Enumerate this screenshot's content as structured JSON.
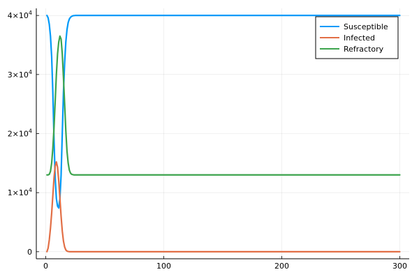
{
  "chart_data": {
    "type": "line",
    "title": "",
    "xlabel": "",
    "ylabel": "",
    "xlim": [
      -8,
      308
    ],
    "ylim": [
      -1200,
      41200
    ],
    "grid": true,
    "legend_position": "top-right",
    "x_ticks": [
      {
        "value": 0,
        "label": "0"
      },
      {
        "value": 100,
        "label": "100"
      },
      {
        "value": 200,
        "label": "200"
      },
      {
        "value": 300,
        "label": "300"
      }
    ],
    "y_ticks": [
      {
        "value": 0,
        "label": "0",
        "mantissa": "",
        "exponent": ""
      },
      {
        "value": 10000,
        "label": "",
        "mantissa": "1×10",
        "exponent": "4"
      },
      {
        "value": 20000,
        "label": "",
        "mantissa": "2×10",
        "exponent": "4"
      },
      {
        "value": 30000,
        "label": "",
        "mantissa": "3×10",
        "exponent": "4"
      },
      {
        "value": 40000,
        "label": "",
        "mantissa": "4×10",
        "exponent": "4"
      }
    ],
    "series": [
      {
        "name": "Susceptible",
        "color": "#009af9",
        "points": [
          [
            1,
            40000
          ],
          [
            2,
            39600
          ],
          [
            3,
            38500
          ],
          [
            4,
            36500
          ],
          [
            5,
            33000
          ],
          [
            6,
            27000
          ],
          [
            7,
            19000
          ],
          [
            8,
            12500
          ],
          [
            9,
            9000
          ],
          [
            10,
            7700
          ],
          [
            11,
            7400
          ],
          [
            12,
            9000
          ],
          [
            13,
            13000
          ],
          [
            14,
            20000
          ],
          [
            15,
            27000
          ],
          [
            16,
            32000
          ],
          [
            17,
            35500
          ],
          [
            18,
            37600
          ],
          [
            19,
            38800
          ],
          [
            20,
            39400
          ],
          [
            21,
            39700
          ],
          [
            22,
            39850
          ],
          [
            23,
            39950
          ],
          [
            25,
            40000
          ],
          [
            50,
            40000
          ],
          [
            100,
            40000
          ],
          [
            150,
            40000
          ],
          [
            200,
            40000
          ],
          [
            250,
            40000
          ],
          [
            300,
            40000
          ]
        ]
      },
      {
        "name": "Infected",
        "color": "#e26f46",
        "points": [
          [
            1,
            0
          ],
          [
            2,
            600
          ],
          [
            3,
            2000
          ],
          [
            4,
            4000
          ],
          [
            5,
            6500
          ],
          [
            6,
            9500
          ],
          [
            7,
            12500
          ],
          [
            8,
            14500
          ],
          [
            9,
            15200
          ],
          [
            10,
            14300
          ],
          [
            11,
            12000
          ],
          [
            12,
            9000
          ],
          [
            13,
            6000
          ],
          [
            14,
            3500
          ],
          [
            15,
            1800
          ],
          [
            16,
            800
          ],
          [
            17,
            300
          ],
          [
            18,
            100
          ],
          [
            19,
            30
          ],
          [
            20,
            0
          ],
          [
            50,
            0
          ],
          [
            100,
            0
          ],
          [
            150,
            0
          ],
          [
            200,
            0
          ],
          [
            250,
            0
          ],
          [
            300,
            0
          ]
        ]
      },
      {
        "name": "Refractory",
        "color": "#3da44d",
        "points": [
          [
            1,
            13000
          ],
          [
            2,
            13000
          ],
          [
            3,
            13100
          ],
          [
            4,
            13600
          ],
          [
            5,
            15000
          ],
          [
            6,
            17500
          ],
          [
            7,
            21000
          ],
          [
            8,
            25500
          ],
          [
            9,
            30000
          ],
          [
            10,
            33500
          ],
          [
            11,
            35500
          ],
          [
            12,
            36500
          ],
          [
            13,
            36000
          ],
          [
            14,
            33500
          ],
          [
            15,
            29500
          ],
          [
            16,
            25000
          ],
          [
            17,
            20500
          ],
          [
            18,
            17000
          ],
          [
            19,
            15000
          ],
          [
            20,
            13800
          ],
          [
            21,
            13300
          ],
          [
            22,
            13100
          ],
          [
            24,
            13000
          ],
          [
            50,
            13000
          ],
          [
            100,
            13000
          ],
          [
            150,
            13000
          ],
          [
            200,
            13000
          ],
          [
            250,
            13000
          ],
          [
            300,
            13000
          ]
        ]
      }
    ]
  }
}
